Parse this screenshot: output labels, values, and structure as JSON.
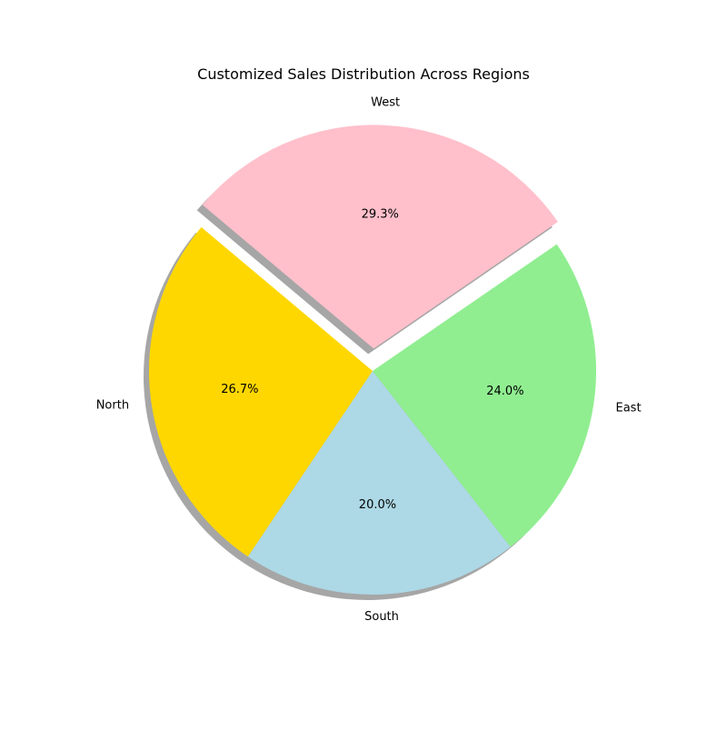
{
  "chart_data": {
    "type": "pie",
    "title": "Customized Sales Distribution Across Regions",
    "slices": [
      {
        "label": "North",
        "value": 26.7,
        "pct_label": "26.7%",
        "color": "#ffd700",
        "explode": 0
      },
      {
        "label": "South",
        "value": 20.0,
        "pct_label": "20.0%",
        "color": "#add8e6",
        "explode": 0
      },
      {
        "label": "East",
        "value": 24.0,
        "pct_label": "24.0%",
        "color": "#90ee90",
        "explode": 0
      },
      {
        "label": "West",
        "value": 29.3,
        "pct_label": "29.3%",
        "color": "#ffc0cb",
        "explode": 0.1
      }
    ],
    "start_angle_deg": 140,
    "direction": "counterclockwise",
    "shadow": true
  }
}
